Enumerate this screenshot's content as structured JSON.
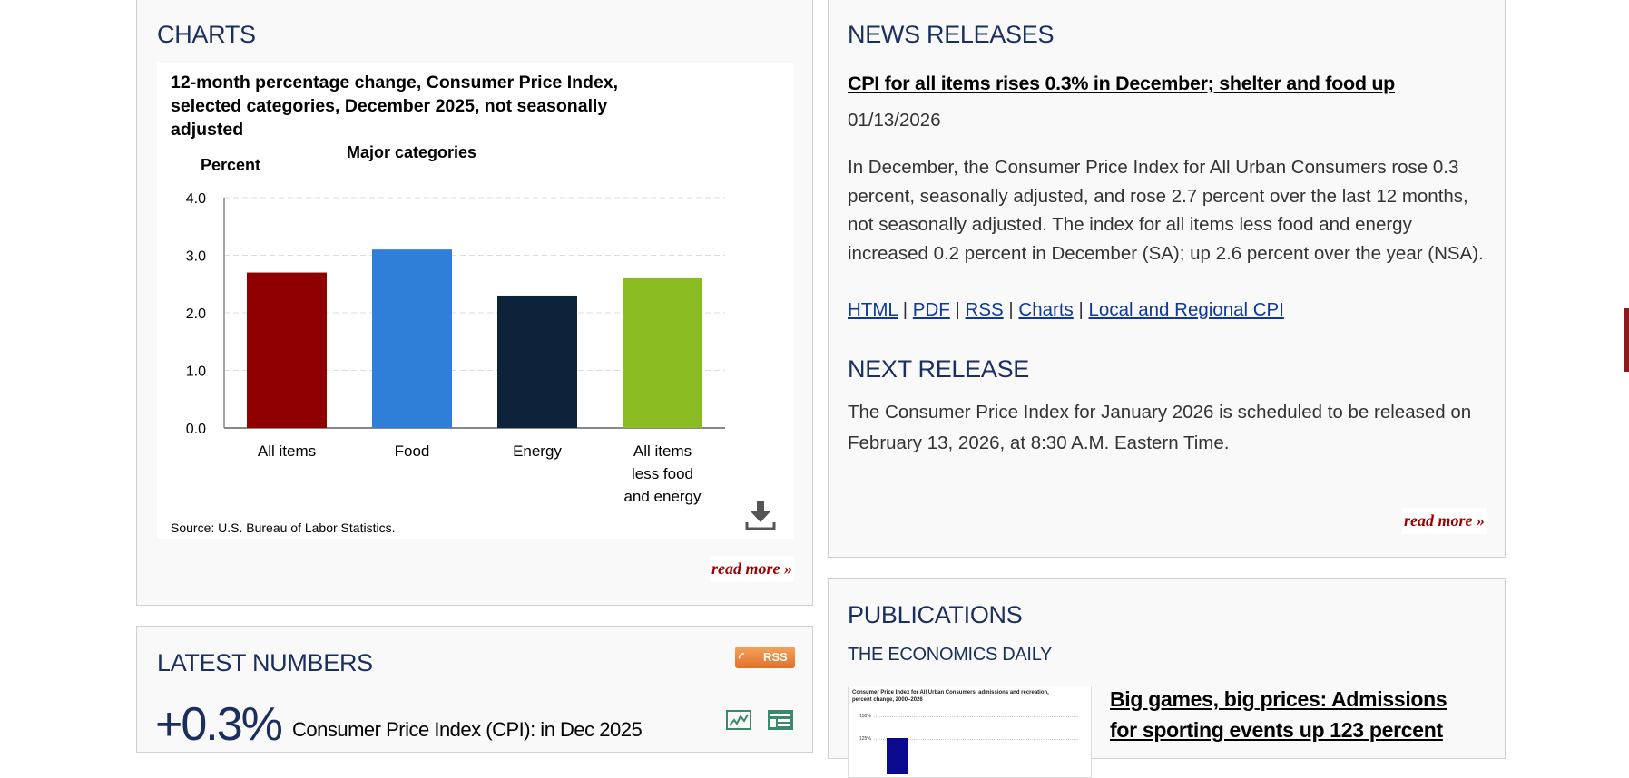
{
  "charts_panel": {
    "heading": "CHARTS",
    "read_more": "read more »",
    "download_icon": "download-icon"
  },
  "chart_data": {
    "type": "bar",
    "title": "12-month percentage change, Consumer Price Index, selected categories, December 2025, not seasonally adjusted",
    "subtitle": "Major categories",
    "ylabel": "Percent",
    "xlabel": "",
    "categories": [
      "All items",
      "Food",
      "Energy",
      "All items less food and energy"
    ],
    "category_lines": [
      [
        "All items"
      ],
      [
        "Food"
      ],
      [
        "Energy"
      ],
      [
        "All items",
        "less food",
        "and energy"
      ]
    ],
    "values": [
      2.7,
      3.1,
      2.3,
      2.6
    ],
    "colors": [
      "#8f0000",
      "#2f7ed8",
      "#0d233a",
      "#8bbc21"
    ],
    "ylim": [
      0,
      4
    ],
    "yticks": [
      "0.0",
      "1.0",
      "2.0",
      "3.0",
      "4.0"
    ],
    "grid": true,
    "source": "Source: U.S. Bureau of Labor Statistics."
  },
  "latest_numbers": {
    "heading": "LATEST NUMBERS",
    "rss_label": "RSS",
    "value": "+0.3%",
    "description": "Consumer Price Index (CPI): in Dec 2025",
    "icons": [
      "chart-icon",
      "table-icon"
    ]
  },
  "news_releases": {
    "heading": "NEWS RELEASES",
    "headline": "CPI for all items rises 0.3% in December; shelter and food up",
    "date": "01/13/2026",
    "summary": "In December, the Consumer Price Index for All Urban Consumers rose 0.3 percent, seasonally adjusted, and rose 2.7 percent over the last 12 months, not seasonally adjusted. The index for all items less food and energy increased 0.2 percent in December (SA); up 2.6 percent over the year (NSA).",
    "links": [
      "HTML",
      "PDF",
      "RSS",
      "Charts",
      "Local and Regional CPI"
    ],
    "separator": "|",
    "next_release_heading": "NEXT RELEASE",
    "next_release_text": "The Consumer Price Index for January 2026 is scheduled to be released on February 13, 2026, at 8:30 A.M. Eastern Time.",
    "read_more": "read more »"
  },
  "publications": {
    "heading": "PUBLICATIONS",
    "subheading": "THE ECONOMICS DAILY",
    "thumbnail_title": "Consumer Price Index for All Urban Consumers, admissions and recreation, percent change, 2000–2026",
    "thumbnail_ticks": [
      "150%",
      "125%"
    ],
    "article_title": "Big games, big prices: Admissions for sporting events up 123 percent"
  },
  "colors": {
    "heading": "#1b2f5e",
    "link": "#0c3a9a",
    "read_more": "#9b0000",
    "rss": "#e8803a",
    "side_marker": "#8b1a1a"
  }
}
